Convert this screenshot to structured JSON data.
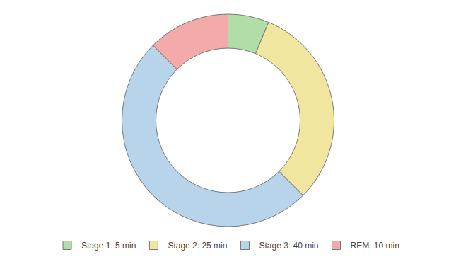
{
  "chart_data": {
    "type": "donut",
    "categories": [
      "Stage 1: 5 min",
      "Stage 2: 25 min",
      "Stage 3: 40 min",
      "REM: 10 min"
    ],
    "values": [
      5,
      25,
      40,
      10
    ],
    "colors": [
      "#b0dda8",
      "#f0e6a0",
      "#b8d4ea",
      "#f4aaa8"
    ],
    "legend": "bottom"
  }
}
